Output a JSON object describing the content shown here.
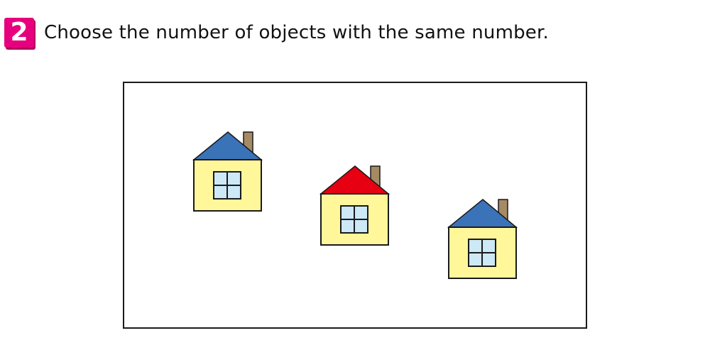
{
  "question": {
    "number": "2",
    "text": "Choose the number of objects with the same number."
  },
  "picture": {
    "object": "house",
    "count": 3,
    "houses": [
      {
        "roof_color": "#3a73b8"
      },
      {
        "roof_color": "#e60012"
      },
      {
        "roof_color": "#3a73b8"
      }
    ],
    "colors": {
      "wall": "#fff799",
      "window": "#cde8f6",
      "chimney": "#a68a64",
      "outline": "#1a1a1a"
    }
  }
}
